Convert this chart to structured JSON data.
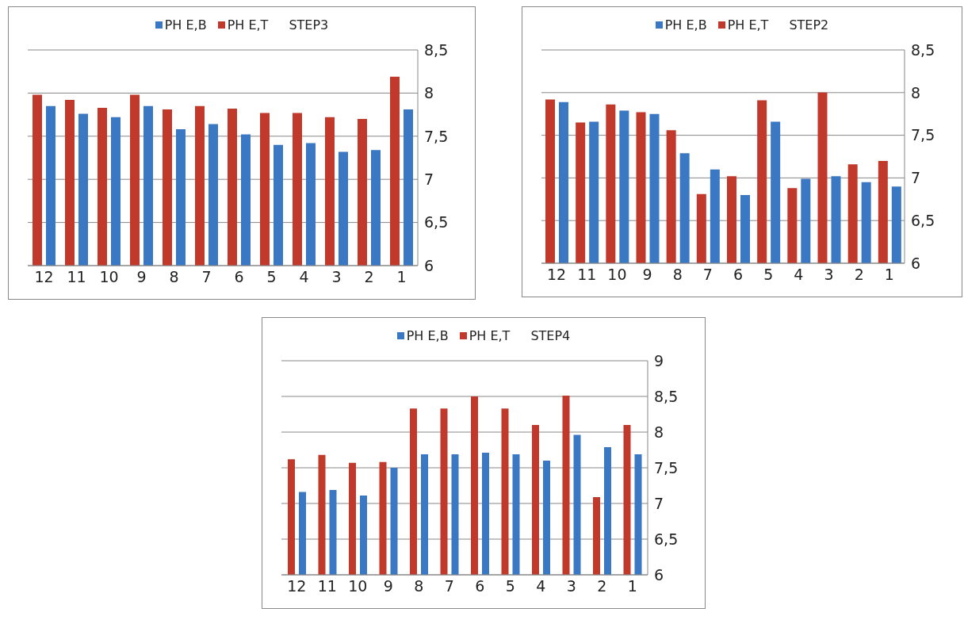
{
  "chart_data": [
    {
      "type": "bar",
      "title": "STEP3",
      "categories": [
        "12",
        "11",
        "10",
        "9",
        "8",
        "7",
        "6",
        "5",
        "4",
        "3",
        "2",
        "1"
      ],
      "series": [
        {
          "name": "PH E,B",
          "color": "#3a78c4",
          "values": [
            7.85,
            7.76,
            7.72,
            7.85,
            7.58,
            7.64,
            7.52,
            7.4,
            7.42,
            7.32,
            7.34,
            7.81
          ]
        },
        {
          "name": "PH E,T",
          "color": "#c0392b",
          "values": [
            7.98,
            7.92,
            7.83,
            7.98,
            7.81,
            7.85,
            7.82,
            7.77,
            7.77,
            7.72,
            7.7,
            8.19
          ]
        }
      ],
      "ylim": [
        6,
        8.5
      ],
      "yticks": [
        6,
        {
          "value": 6.5,
          "label": "6,5"
        },
        7,
        {
          "value": 7.5,
          "label": "7,5"
        },
        8,
        {
          "value": 8.5,
          "label": "8,5"
        }
      ],
      "grid": "y",
      "legend": "top"
    },
    {
      "type": "bar",
      "title": "STEP2",
      "categories": [
        "12",
        "11",
        "10",
        "9",
        "8",
        "7",
        "6",
        "5",
        "4",
        "3",
        "2",
        "1"
      ],
      "series": [
        {
          "name": "PH E,B",
          "color": "#3a78c4",
          "values": [
            7.89,
            7.66,
            7.79,
            7.75,
            7.29,
            7.1,
            6.8,
            7.66,
            6.99,
            7.02,
            6.95,
            6.9
          ]
        },
        {
          "name": "PH E,T",
          "color": "#c0392b",
          "values": [
            7.92,
            7.65,
            7.86,
            7.77,
            7.56,
            6.81,
            7.02,
            7.91,
            6.88,
            8.0,
            7.16,
            7.2
          ]
        }
      ],
      "ylim": [
        6,
        8.5
      ],
      "yticks": [
        6,
        {
          "value": 6.5,
          "label": "6,5"
        },
        7,
        {
          "value": 7.5,
          "label": "7,5"
        },
        8,
        {
          "value": 8.5,
          "label": "8,5"
        }
      ],
      "grid": "y",
      "legend": "top"
    },
    {
      "type": "bar",
      "title": "STEP4",
      "categories": [
        "12",
        "11",
        "10",
        "9",
        "8",
        "7",
        "6",
        "5",
        "4",
        "3",
        "2",
        "1"
      ],
      "series": [
        {
          "name": "PH E,B",
          "color": "#3a78c4",
          "values": [
            7.16,
            7.19,
            7.11,
            7.5,
            7.69,
            7.69,
            7.71,
            7.69,
            7.6,
            7.96,
            7.79,
            7.69
          ]
        },
        {
          "name": "PH E,T",
          "color": "#c0392b",
          "values": [
            7.62,
            7.68,
            7.57,
            7.58,
            8.33,
            8.33,
            8.5,
            8.33,
            8.1,
            8.51,
            7.09,
            8.1
          ]
        }
      ],
      "ylim": [
        6,
        9
      ],
      "yticks": [
        6,
        {
          "value": 6.5,
          "label": "6,5"
        },
        7,
        {
          "value": 7.5,
          "label": "7,5"
        },
        8,
        {
          "value": 8.5,
          "label": "8,5"
        },
        9
      ],
      "grid": "y",
      "legend": "top"
    }
  ]
}
